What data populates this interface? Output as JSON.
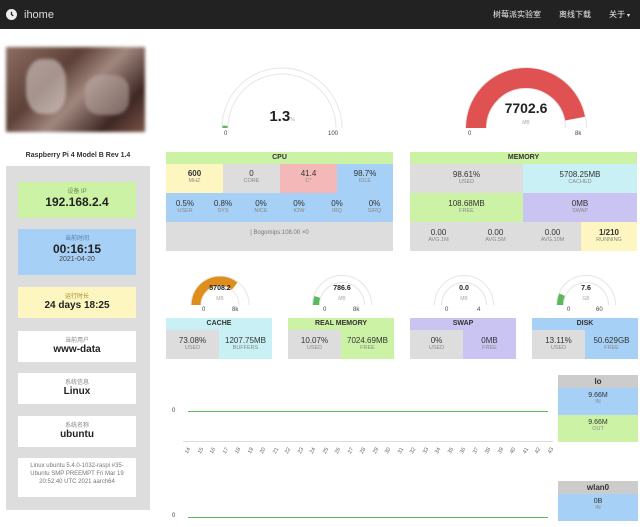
{
  "app": {
    "brand": "ihome"
  },
  "nav": {
    "lab": "树莓派实验室",
    "download": "离线下载",
    "about": "关于"
  },
  "sidebar": {
    "model": "Raspberry Pi 4 Model B Rev 1.4",
    "ip_label": "设备 IP",
    "ip": "192.168.2.4",
    "time_label": "当前时间",
    "time": "00:16:15",
    "date": "2021-04-20",
    "uptime_label": "运行时长",
    "uptime": "24 days 18:25",
    "user_label": "当前用户",
    "user": "www-data",
    "os_label": "系统信息",
    "os": "Linux",
    "hostname_label": "系统名称",
    "hostname": "ubuntu",
    "kernel": "Linux ubuntu 5.4.0-1032-raspi #35-Ubuntu SMP PREEMPT Fri Mar 19 20:52:40 UTC 2021 aarch64"
  },
  "gauges": {
    "cpu": {
      "value": "1.3",
      "unit": "%",
      "min": "0",
      "max": "100",
      "fraction": 0.013,
      "color": "#5cb85c"
    },
    "mem": {
      "value": "7702.6",
      "unit": "MB",
      "min": "0",
      "max": "8k",
      "fraction": 0.94,
      "color": "#e05252"
    },
    "cache": {
      "value": "5708.2",
      "unit": "MB",
      "min": "0",
      "max": "8k",
      "fraction": 0.71,
      "color": "#e08e1b"
    },
    "realmem": {
      "value": "786.6",
      "unit": "MB",
      "min": "0",
      "max": "8k",
      "fraction": 0.1,
      "color": "#5cb85c"
    },
    "swap": {
      "value": "0.0",
      "unit": "MB",
      "min": "0",
      "max": "4",
      "fraction": 0.0,
      "color": "#5cb85c"
    },
    "disk": {
      "value": "7.6",
      "unit": "GB",
      "min": "0",
      "max": "60",
      "fraction": 0.13,
      "color": "#5cb85c"
    }
  },
  "cpu": {
    "title": "CPU",
    "mhz": "600",
    "mhz_k": "MHz",
    "core": "0",
    "core_k": "CORE",
    "temp": "41.4",
    "temp_k": "C°",
    "idle": "98.7%",
    "idle_k": "IDLE",
    "user": "0.5%",
    "user_k": "USER",
    "sys": "0.8%",
    "sys_k": "SYS",
    "nice": "0%",
    "nice_k": "NICE",
    "iow": "0%",
    "iow_k": "IOW",
    "irq": "0%",
    "irq_k": "IRQ",
    "sirq": "0%",
    "sirq_k": "SIRQ",
    "bogomips": "| Bogomips:108.00 ×0"
  },
  "memory": {
    "title": "MEMORY",
    "used": "98.61%",
    "used_k": "USED",
    "cached": "5708.25MB",
    "cached_k": "CACHED",
    "free": "108.68MB",
    "free_k": "FREE",
    "swap": "0MB",
    "swap_k": "SWAP",
    "avg1": "0.00",
    "avg1_k": "AVG.1M",
    "avg5": "0.00",
    "avg5_k": "AVG.5M",
    "avg10": "0.00",
    "avg10_k": "AVG.10M",
    "running": "1/210",
    "running_k": "RUNNING"
  },
  "cache": {
    "title": "CACHE",
    "used": "73.08%",
    "used_k": "USED",
    "buffers": "1207.75MB",
    "buffers_k": "BUFFERS"
  },
  "realmem": {
    "title": "REAL MEMORY",
    "used": "10.07%",
    "used_k": "USED",
    "free": "7024.69MB",
    "free_k": "FREE"
  },
  "swapbox": {
    "title": "SWAP",
    "used": "0%",
    "used_k": "USED",
    "free": "0MB",
    "free_k": "FREE"
  },
  "disk": {
    "title": "DISK",
    "used": "13.11%",
    "used_k": "USED",
    "free": "50.629GB",
    "free_k": "FREE"
  },
  "network": {
    "lo": {
      "name": "lo",
      "in": "9.66M",
      "in_k": "IN",
      "out": "9.66M",
      "out_k": "OUT"
    },
    "wlan0": {
      "name": "wlan0",
      "in": "0B",
      "in_k": "IN"
    },
    "zero": "0",
    "xticks": [
      "14",
      "15",
      "16",
      "17",
      "18",
      "19",
      "20",
      "21",
      "22",
      "23",
      "24",
      "25",
      "26",
      "27",
      "28",
      "29",
      "30",
      "31",
      "32",
      "33",
      "34",
      "35",
      "36",
      "37",
      "38",
      "39",
      "40",
      "41",
      "42",
      "43"
    ]
  }
}
